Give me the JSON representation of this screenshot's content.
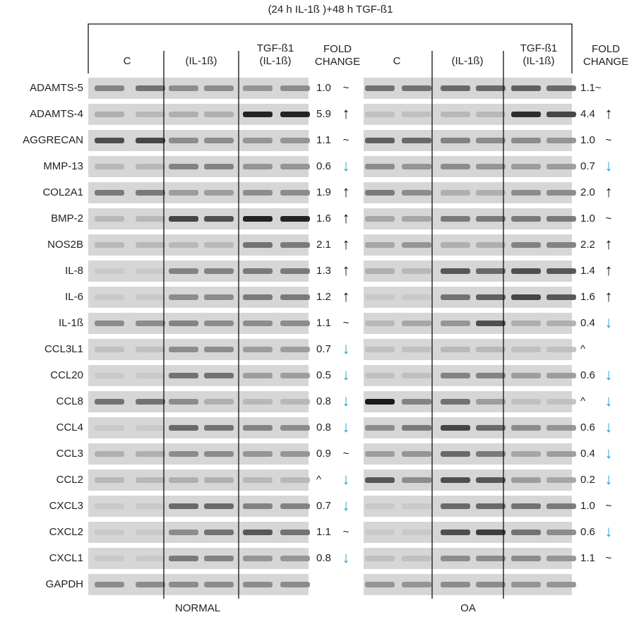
{
  "header": {
    "title": "(24 h IL-1ß )+48 h TGF-ß1"
  },
  "genes": [
    "ADAMTS-5",
    "ADAMTS-4",
    "AGGRECAN",
    "MMP-13",
    "COL2A1",
    "BMP-2",
    "NOS2B",
    "IL-8",
    "IL-6",
    "IL-1ß",
    "CCL3L1",
    "CCL20",
    "CCL8",
    "CCL4",
    "CCL3",
    "CCL2",
    "CXCL3",
    "CXCL2",
    "CXCL1",
    "GAPDH"
  ],
  "panels": [
    {
      "name": "NORMAL",
      "columns": [
        [
          "C"
        ],
        [
          "(IL-1ß)"
        ],
        [
          "TGF-ß1",
          "(IL-1ß)"
        ]
      ],
      "fold_header": [
        "FOLD",
        "CHANGE"
      ],
      "fold": [
        {
          "value": "1.0",
          "sign": "~"
        },
        {
          "value": "5.9",
          "sign": "↑"
        },
        {
          "value": "1.1",
          "sign": "~"
        },
        {
          "value": "0.6",
          "sign": "↓"
        },
        {
          "value": "1.9",
          "sign": "↑"
        },
        {
          "value": "1.6",
          "sign": "↑"
        },
        {
          "value": "2.1",
          "sign": "↑"
        },
        {
          "value": "1.3",
          "sign": "↑"
        },
        {
          "value": "1.2",
          "sign": "↑"
        },
        {
          "value": "1.1",
          "sign": "~"
        },
        {
          "value": "0.7",
          "sign": "↓"
        },
        {
          "value": "0.5",
          "sign": "↓"
        },
        {
          "value": "0.8",
          "sign": "↓"
        },
        {
          "value": "0.8",
          "sign": "↓"
        },
        {
          "value": "0.9",
          "sign": "~"
        },
        {
          "value": "^",
          "sign": "↓"
        },
        {
          "value": "0.7",
          "sign": "↓"
        },
        {
          "value": "1.1",
          "sign": "~"
        },
        {
          "value": "0.8",
          "sign": "↓"
        }
      ]
    },
    {
      "name": "OA",
      "columns": [
        [
          "C"
        ],
        [
          "(IL-1ß)"
        ],
        [
          "TGF-ß1",
          "(IL-1ß)"
        ]
      ],
      "fold_header": [
        "FOLD",
        "CHANGE"
      ],
      "fold": [
        {
          "value": "1.1~"
        },
        {
          "value": "4.4",
          "sign": "↑"
        },
        {
          "value": "1.0",
          "sign": "~"
        },
        {
          "value": "0.7",
          "sign": "↓"
        },
        {
          "value": "2.0",
          "sign": "↑"
        },
        {
          "value": "1.0",
          "sign": "~"
        },
        {
          "value": "2.2",
          "sign": "↑"
        },
        {
          "value": "1.4",
          "sign": "↑"
        },
        {
          "value": "1.6",
          "sign": "↑"
        },
        {
          "value": "0.4",
          "sign": "↓"
        },
        {
          "value": "^"
        },
        {
          "value": "0.6",
          "sign": "↓"
        },
        {
          "value": "^",
          "sign": "↓"
        },
        {
          "value": "0.6",
          "sign": "↓"
        },
        {
          "value": "0.4",
          "sign": "↓"
        },
        {
          "value": "0.2",
          "sign": "↓"
        },
        {
          "value": "1.0",
          "sign": "~"
        },
        {
          "value": "0.6",
          "sign": "↓"
        },
        {
          "value": "1.1",
          "sign": "~"
        }
      ]
    }
  ]
}
